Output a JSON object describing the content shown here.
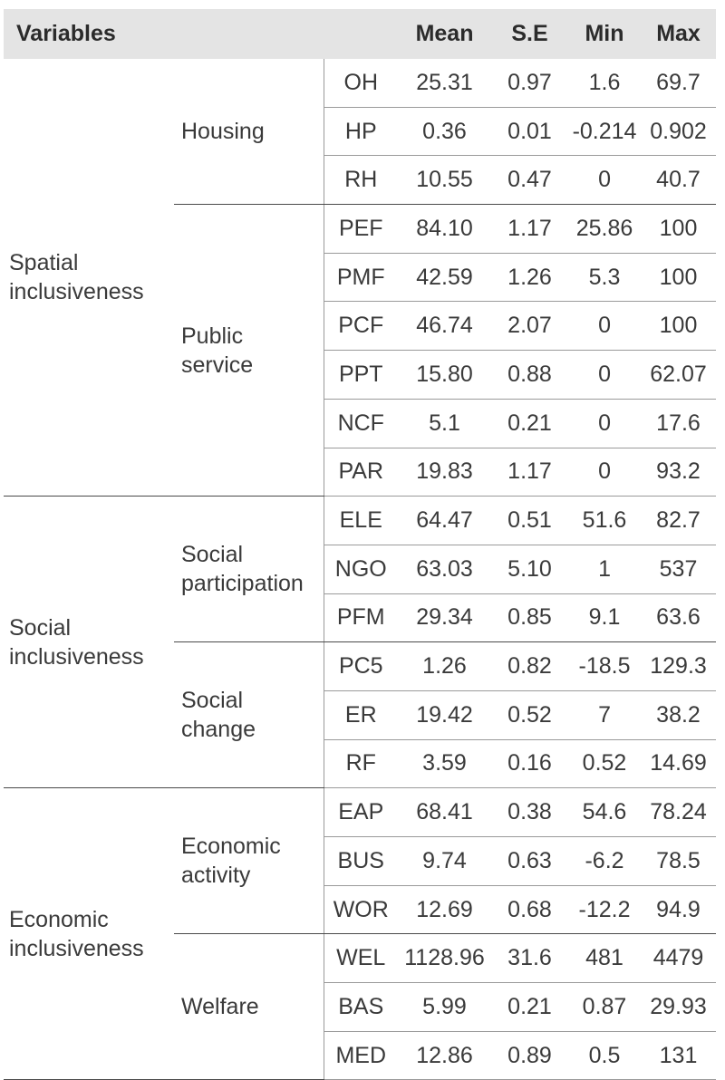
{
  "headers": {
    "variables": "Variables",
    "mean": "Mean",
    "se": "S.E",
    "min": "Min",
    "max": "Max"
  },
  "groups": [
    {
      "name": "Spatial\ninclusiveness",
      "subgroups": [
        {
          "name": "Housing",
          "rows": [
            {
              "code": "OH",
              "mean": "25.31",
              "se": "0.97",
              "min": "1.6",
              "max": "69.7"
            },
            {
              "code": "HP",
              "mean": "0.36",
              "se": "0.01",
              "min": "-0.214",
              "max": "0.902"
            },
            {
              "code": "RH",
              "mean": "10.55",
              "se": "0.47",
              "min": "0",
              "max": "40.7"
            }
          ]
        },
        {
          "name": "Public\nservice",
          "rows": [
            {
              "code": "PEF",
              "mean": "84.10",
              "se": "1.17",
              "min": "25.86",
              "max": "100"
            },
            {
              "code": "PMF",
              "mean": "42.59",
              "se": "1.26",
              "min": "5.3",
              "max": "100"
            },
            {
              "code": "PCF",
              "mean": "46.74",
              "se": "2.07",
              "min": "0",
              "max": "100"
            },
            {
              "code": "PPT",
              "mean": "15.80",
              "se": "0.88",
              "min": "0",
              "max": "62.07"
            },
            {
              "code": "NCF",
              "mean": "5.1",
              "se": "0.21",
              "min": "0",
              "max": "17.6"
            },
            {
              "code": "PAR",
              "mean": "19.83",
              "se": "1.17",
              "min": "0",
              "max": "93.2"
            }
          ]
        }
      ]
    },
    {
      "name": "Social\ninclusiveness",
      "subgroups": [
        {
          "name": "Social\nparticipation",
          "rows": [
            {
              "code": "ELE",
              "mean": "64.47",
              "se": "0.51",
              "min": "51.6",
              "max": "82.7"
            },
            {
              "code": "NGO",
              "mean": "63.03",
              "se": "5.10",
              "min": "1",
              "max": "537"
            },
            {
              "code": "PFM",
              "mean": "29.34",
              "se": "0.85",
              "min": "9.1",
              "max": "63.6"
            }
          ]
        },
        {
          "name": "Social\nchange",
          "rows": [
            {
              "code": "PC5",
              "mean": "1.26",
              "se": "0.82",
              "min": "-18.5",
              "max": "129.3"
            },
            {
              "code": "ER",
              "mean": "19.42",
              "se": "0.52",
              "min": "7",
              "max": "38.2"
            },
            {
              "code": "RF",
              "mean": "3.59",
              "se": "0.16",
              "min": "0.52",
              "max": "14.69"
            }
          ]
        }
      ]
    },
    {
      "name": "Economic\ninclusiveness",
      "subgroups": [
        {
          "name": "Economic\nactivity",
          "rows": [
            {
              "code": "EAP",
              "mean": "68.41",
              "se": "0.38",
              "min": "54.6",
              "max": "78.24"
            },
            {
              "code": "BUS",
              "mean": "9.74",
              "se": "0.63",
              "min": "-6.2",
              "max": "78.5"
            },
            {
              "code": "WOR",
              "mean": "12.69",
              "se": "0.68",
              "min": "-12.2",
              "max": "94.9"
            }
          ]
        },
        {
          "name": "Welfare",
          "rows": [
            {
              "code": "WEL",
              "mean": "1128.96",
              "se": "31.6",
              "min": "481",
              "max": "4479"
            },
            {
              "code": "BAS",
              "mean": "5.99",
              "se": "0.21",
              "min": "0.87",
              "max": "29.93"
            },
            {
              "code": "MED",
              "mean": "12.86",
              "se": "0.89",
              "min": "0.5",
              "max": "131"
            }
          ]
        }
      ]
    }
  ]
}
